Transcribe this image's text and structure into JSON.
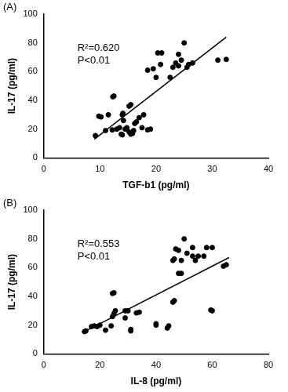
{
  "chart_data": [
    {
      "type": "scatter",
      "title": "(A)",
      "x_label": "TGF-b1 (pg/ml)",
      "y_label": "IL-17 (pg/ml)",
      "x": [
        9.2,
        9.8,
        10.2,
        11,
        11.5,
        12.3,
        12.5,
        12.2,
        13,
        13.5,
        13.8,
        14,
        14,
        14.1,
        14.2,
        14.5,
        14.8,
        15.2,
        15.5,
        15.8,
        15.2,
        15.5,
        16,
        16.2,
        16.5,
        17,
        17.5,
        17.8,
        18.5,
        19,
        18.5,
        19.5,
        20,
        20.3,
        21,
        20.8,
        22.5,
        23,
        23.5,
        24,
        24,
        24.5,
        25,
        25.5,
        25.8,
        26.5,
        31,
        32.5
      ],
      "values": [
        15.5,
        29,
        28.5,
        19,
        30,
        42.5,
        43,
        19.5,
        20,
        21,
        16.5,
        16,
        30,
        31,
        26,
        20,
        21,
        18,
        16.5,
        17,
        36,
        37,
        19,
        24,
        25,
        28,
        21,
        30,
        19.5,
        20,
        61,
        62,
        56,
        73,
        73,
        65,
        56,
        63,
        66,
        64,
        72,
        68,
        80,
        63,
        65,
        66,
        68,
        68.5
      ],
      "color": "#000000",
      "xlim": [
        0,
        40
      ],
      "xticks": [
        0,
        10,
        20,
        30,
        40
      ],
      "ylim": [
        0,
        100
      ],
      "yticks": [
        0,
        20,
        40,
        60,
        80,
        100
      ],
      "grid": false,
      "annotations": [
        "R²=0.620",
        "P<0.01"
      ],
      "fit_line": {
        "x": [
          9,
          32.5
        ],
        "values": [
          13,
          84
        ]
      }
    },
    {
      "type": "scatter",
      "title": "(B)",
      "x_label": "IL-8 (pg/ml)",
      "y_label": "IL-17 (pg/ml)",
      "x": [
        14.5,
        15,
        17,
        18,
        19,
        20,
        22,
        24,
        24.5,
        25,
        25.5,
        25,
        24.5,
        29,
        29,
        30,
        31,
        31,
        33,
        34,
        40,
        40,
        44,
        44.5,
        46,
        46.5,
        46,
        46.5,
        47,
        48,
        48,
        49,
        49,
        50,
        51,
        53,
        53,
        54,
        55,
        57,
        58,
        60,
        59.5,
        60,
        64,
        65
      ],
      "values": [
        15.5,
        16,
        19,
        19.5,
        19,
        20,
        16.5,
        19.5,
        42,
        42.5,
        30,
        28,
        26,
        25,
        30,
        30,
        17,
        16,
        28.5,
        29,
        20,
        21,
        18,
        19.5,
        36,
        37,
        65,
        66,
        73,
        72,
        56,
        56,
        65,
        80,
        70,
        68,
        74,
        65,
        68,
        68,
        74,
        74,
        30.5,
        30,
        61,
        62
      ],
      "color": "#000000",
      "xlim": [
        0,
        80
      ],
      "xticks": [
        0,
        20,
        40,
        60,
        80
      ],
      "ylim": [
        0,
        100
      ],
      "yticks": [
        0,
        20,
        40,
        60,
        80,
        100
      ],
      "grid": false,
      "annotations": [
        "R²=0.553",
        "P<0.01"
      ],
      "fit_line": {
        "x": [
          14,
          66
        ],
        "values": [
          15,
          67
        ]
      }
    }
  ]
}
